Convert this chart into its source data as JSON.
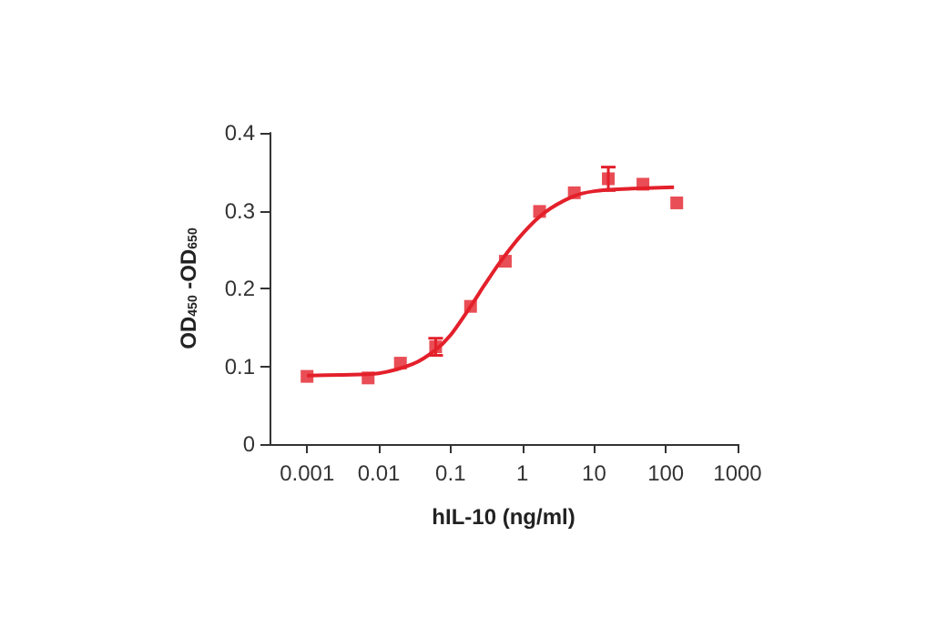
{
  "chart_data": {
    "type": "scatter",
    "xlabel": "hIL-10 (ng/ml)",
    "ylabel": "OD$_{450}$ -OD$_{650}$",
    "log": "x",
    "xlim": [
      0.0003,
      1000
    ],
    "xticks": [
      0.001,
      0.01,
      0.1,
      1,
      10,
      100,
      1000
    ],
    "ylim": [
      0,
      0.4
    ],
    "yticks": [
      0,
      0.1,
      0.2,
      0.3,
      0.4
    ],
    "grid": false,
    "series": [
      {
        "color": "#e3202b",
        "marker": "square",
        "x": [
          0.001,
          0.0071,
          0.02,
          0.062,
          0.19,
          0.58,
          1.74,
          5.3,
          15.8,
          48,
          142
        ],
        "values": [
          0.087,
          0.085,
          0.104,
          0.125,
          0.177,
          0.235,
          0.299,
          0.323,
          0.341,
          0.334,
          0.31
        ],
        "errors": [
          null,
          null,
          null,
          0.011,
          null,
          null,
          null,
          null,
          0.015,
          null,
          null
        ]
      },
      {
        "type": "line",
        "color": "#e3202b",
        "marker": "none",
        "line_style": "solid",
        "x": [
          0.001,
          0.003,
          0.01,
          0.03,
          0.06,
          0.1,
          0.2,
          0.3,
          0.5,
          1,
          2,
          5,
          10,
          30,
          130
        ],
        "values": [
          0.088,
          0.089,
          0.091,
          0.103,
          0.12,
          0.14,
          0.18,
          0.205,
          0.235,
          0.27,
          0.297,
          0.318,
          0.325,
          0.328,
          0.33
        ]
      }
    ]
  }
}
